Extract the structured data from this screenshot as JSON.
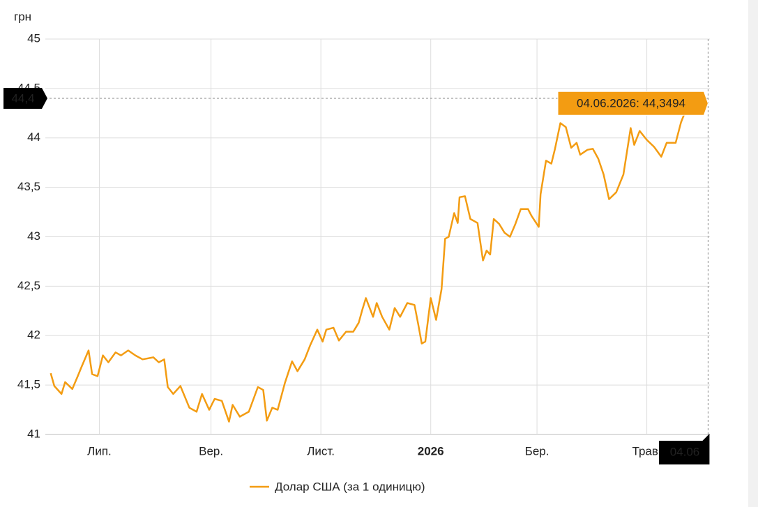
{
  "chart_data": {
    "type": "line",
    "y_unit": "грн",
    "x": [
      "2025-06-04",
      "2025-06-06",
      "2025-06-10",
      "2025-06-12",
      "2025-06-16",
      "2025-06-19",
      "2025-06-21",
      "2025-06-25",
      "2025-06-27",
      "2025-06-30",
      "2025-07-03",
      "2025-07-06",
      "2025-07-10",
      "2025-07-13",
      "2025-07-17",
      "2025-07-21",
      "2025-07-25",
      "2025-07-31",
      "2025-08-03",
      "2025-08-06",
      "2025-08-08",
      "2025-08-11",
      "2025-08-15",
      "2025-08-20",
      "2025-08-24",
      "2025-08-27",
      "2025-08-31",
      "2025-09-03",
      "2025-09-07",
      "2025-09-11",
      "2025-09-13",
      "2025-09-17",
      "2025-09-22",
      "2025-09-27",
      "2025-09-30",
      "2025-10-02",
      "2025-10-05",
      "2025-10-08",
      "2025-10-12",
      "2025-10-16",
      "2025-10-19",
      "2025-10-23",
      "2025-10-26",
      "2025-10-30",
      "2025-11-02",
      "2025-11-04",
      "2025-11-08",
      "2025-11-11",
      "2025-11-15",
      "2025-11-19",
      "2025-11-22",
      "2025-11-24",
      "2025-11-26",
      "2025-11-30",
      "2025-12-02",
      "2025-12-05",
      "2025-12-09",
      "2025-12-12",
      "2025-12-15",
      "2025-12-19",
      "2025-12-23",
      "2025-12-25",
      "2025-12-27",
      "2025-12-29",
      "2026-01-01",
      "2026-01-04",
      "2026-01-07",
      "2026-01-09",
      "2026-01-11",
      "2026-01-14",
      "2026-01-16",
      "2026-01-17",
      "2026-01-20",
      "2026-01-23",
      "2026-01-27",
      "2026-01-30",
      "2026-02-01",
      "2026-02-03",
      "2026-02-05",
      "2026-02-08",
      "2026-02-11",
      "2026-02-14",
      "2026-02-17",
      "2026-02-20",
      "2026-02-24",
      "2026-02-26",
      "2026-03-02",
      "2026-03-03",
      "2026-03-06",
      "2026-03-09",
      "2026-03-11",
      "2026-03-14",
      "2026-03-17",
      "2026-03-20",
      "2026-03-23",
      "2026-03-25",
      "2026-03-29",
      "2026-04-01",
      "2026-04-04",
      "2026-04-07",
      "2026-04-10",
      "2026-04-14",
      "2026-04-18",
      "2026-04-22",
      "2026-04-24",
      "2026-04-27",
      "2026-05-01",
      "2026-05-05",
      "2026-05-09",
      "2026-05-12",
      "2026-05-17",
      "2026-05-20",
      "2026-05-22",
      "2026-06-04"
    ],
    "series": [
      {
        "name": "Долар США (за 1 одиницю)",
        "color": "#f39c12",
        "values": [
          41.62,
          41.49,
          41.41,
          41.53,
          41.46,
          41.59,
          41.68,
          41.85,
          41.61,
          41.59,
          41.8,
          41.73,
          41.83,
          41.8,
          41.85,
          41.8,
          41.76,
          41.78,
          41.73,
          41.76,
          41.48,
          41.41,
          41.49,
          41.27,
          41.23,
          41.41,
          41.25,
          41.36,
          41.34,
          41.13,
          41.3,
          41.18,
          41.23,
          41.48,
          41.45,
          41.14,
          41.27,
          41.25,
          41.52,
          41.74,
          41.64,
          41.76,
          41.9,
          42.06,
          41.94,
          42.06,
          42.08,
          41.95,
          42.04,
          42.04,
          42.13,
          42.26,
          42.38,
          42.19,
          42.33,
          42.19,
          42.06,
          42.28,
          42.19,
          42.33,
          42.31,
          42.12,
          41.92,
          41.94,
          42.38,
          42.16,
          42.47,
          42.98,
          43.0,
          43.24,
          43.14,
          43.4,
          43.41,
          43.18,
          43.14,
          42.76,
          42.86,
          42.82,
          43.18,
          43.13,
          43.04,
          43.0,
          43.13,
          43.28,
          43.28,
          43.21,
          43.1,
          43.43,
          43.77,
          43.74,
          43.89,
          44.15,
          44.11,
          43.9,
          43.95,
          43.83,
          43.88,
          43.89,
          43.79,
          43.63,
          43.38,
          43.45,
          43.63,
          44.1,
          43.93,
          44.07,
          43.98,
          43.91,
          43.81,
          43.95,
          43.95,
          44.16,
          44.25,
          44.3494
        ]
      }
    ],
    "xlim": [
      "2025-06-01",
      "2026-06-05"
    ],
    "xticks": [
      {
        "value": "2025-07-01",
        "label": "Лип."
      },
      {
        "value": "2025-09-01",
        "label": "Вер."
      },
      {
        "value": "2025-11-01",
        "label": "Лист."
      },
      {
        "value": "2026-01-01",
        "label": "2026"
      },
      {
        "value": "2026-03-01",
        "label": "Бер."
      },
      {
        "value": "2026-05-01",
        "label": "Трав."
      }
    ],
    "ylim": [
      41,
      45
    ],
    "yticks": [
      41,
      {
        "value": 41.5,
        "label": "41,5"
      },
      42,
      {
        "value": 42.5,
        "label": "42,5"
      },
      43,
      {
        "value": 43.5,
        "label": "43,5"
      },
      44,
      {
        "value": 44.5,
        "label": "44,5"
      },
      45
    ],
    "grid": true,
    "legend": "bottom",
    "crosshair": {
      "x": "2026-06-04",
      "x_label": "04.06",
      "y": 44.4,
      "y_label": "44,4"
    },
    "tooltip": "04.06.2026: 44,3494"
  }
}
